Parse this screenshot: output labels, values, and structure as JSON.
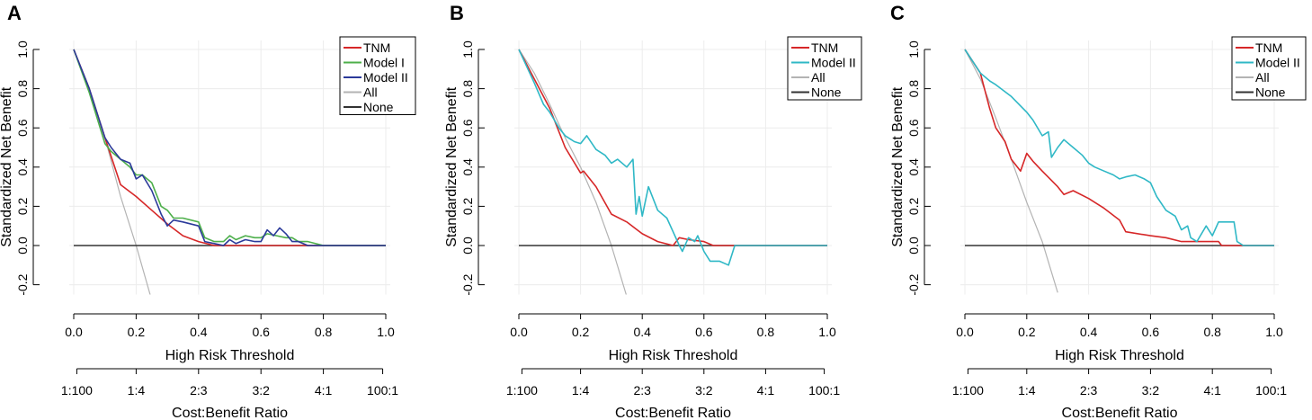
{
  "figure": {
    "width": 1459,
    "height": 467
  },
  "chart_data": [
    {
      "panel_label": "A",
      "type": "line",
      "xlabel": "High Risk Threshold",
      "ylabel": "Standardized Net Benefit",
      "secondary_xlabel": "Cost:Benefit Ratio",
      "xlim": [
        0,
        1
      ],
      "ylim": [
        -0.25,
        1.0
      ],
      "xticks": [
        "0.0",
        "0.2",
        "0.4",
        "0.6",
        "0.8",
        "1.0"
      ],
      "yticks": [
        "-0.2",
        "0.0",
        "0.2",
        "0.4",
        "0.6",
        "0.8",
        "1.0"
      ],
      "secondary_ticks": [
        "1:100",
        "1:4",
        "2:3",
        "3:2",
        "4:1",
        "100:1"
      ],
      "secondary_tick_x": [
        0.0099,
        0.2,
        0.4,
        0.6,
        0.8,
        0.9901
      ],
      "legend_position": "top-right",
      "series": [
        {
          "name": "TNM",
          "color": "#d62728",
          "x": [
            0,
            0.05,
            0.1,
            0.15,
            0.2,
            0.25,
            0.3,
            0.35,
            0.4,
            0.45,
            1.0
          ],
          "y": [
            1.0,
            0.8,
            0.55,
            0.31,
            0.25,
            0.18,
            0.11,
            0.05,
            0.02,
            0.0,
            0.0
          ]
        },
        {
          "name": "Model I",
          "color": "#4daf4a",
          "x": [
            0,
            0.05,
            0.1,
            0.12,
            0.15,
            0.18,
            0.2,
            0.22,
            0.25,
            0.28,
            0.3,
            0.32,
            0.35,
            0.4,
            0.42,
            0.45,
            0.48,
            0.5,
            0.52,
            0.55,
            0.58,
            0.6,
            0.62,
            0.65,
            0.68,
            0.7,
            0.72,
            0.75,
            0.8,
            1.0
          ],
          "y": [
            1.0,
            0.78,
            0.52,
            0.48,
            0.44,
            0.4,
            0.36,
            0.36,
            0.32,
            0.2,
            0.18,
            0.14,
            0.14,
            0.12,
            0.04,
            0.02,
            0.02,
            0.05,
            0.03,
            0.05,
            0.04,
            0.04,
            0.06,
            0.05,
            0.04,
            0.04,
            0.02,
            0.02,
            0.0,
            0.0
          ]
        },
        {
          "name": "Model II",
          "color": "#2b3a9a",
          "x": [
            0,
            0.05,
            0.1,
            0.12,
            0.15,
            0.18,
            0.2,
            0.22,
            0.25,
            0.28,
            0.3,
            0.32,
            0.35,
            0.4,
            0.42,
            0.45,
            0.48,
            0.5,
            0.52,
            0.55,
            0.58,
            0.6,
            0.62,
            0.64,
            0.66,
            0.68,
            0.7,
            0.72,
            0.75,
            0.8,
            1.0
          ],
          "y": [
            1.0,
            0.8,
            0.55,
            0.5,
            0.44,
            0.42,
            0.34,
            0.36,
            0.28,
            0.16,
            0.1,
            0.13,
            0.12,
            0.1,
            0.02,
            0.01,
            0.0,
            0.03,
            0.01,
            0.03,
            0.02,
            0.02,
            0.08,
            0.05,
            0.09,
            0.06,
            0.02,
            0.02,
            0.0,
            0.0,
            0.0
          ]
        },
        {
          "name": "All",
          "color": "#b3b3b3",
          "x": [
            0,
            0.05,
            0.1,
            0.15,
            0.2,
            0.25
          ],
          "y": [
            1.0,
            0.8,
            0.55,
            0.25,
            0.0,
            -0.28
          ]
        },
        {
          "name": "None",
          "color": "#333333",
          "x": [
            0,
            1.0
          ],
          "y": [
            0.0,
            0.0
          ]
        }
      ]
    },
    {
      "panel_label": "B",
      "type": "line",
      "xlabel": "High Risk Threshold",
      "ylabel": "Standardized Net Benefit",
      "secondary_xlabel": "Cost:Benefit Ratio",
      "xlim": [
        0,
        1
      ],
      "ylim": [
        -0.25,
        1.0
      ],
      "xticks": [
        "0.0",
        "0.2",
        "0.4",
        "0.6",
        "0.8",
        "1.0"
      ],
      "yticks": [
        "-0.2",
        "0.0",
        "0.2",
        "0.4",
        "0.6",
        "0.8",
        "1.0"
      ],
      "secondary_ticks": [
        "1:100",
        "1:4",
        "2:3",
        "3:2",
        "4:1",
        "100:1"
      ],
      "secondary_tick_x": [
        0.0099,
        0.2,
        0.4,
        0.6,
        0.8,
        0.9901
      ],
      "legend_position": "top-right",
      "series": [
        {
          "name": "TNM",
          "color": "#d62728",
          "x": [
            0,
            0.05,
            0.1,
            0.15,
            0.2,
            0.21,
            0.25,
            0.3,
            0.35,
            0.4,
            0.45,
            0.5,
            0.52,
            0.55,
            0.6,
            0.63,
            0.7,
            1.0
          ],
          "y": [
            1.0,
            0.85,
            0.7,
            0.5,
            0.37,
            0.38,
            0.3,
            0.16,
            0.12,
            0.06,
            0.02,
            0.0,
            0.04,
            0.03,
            0.02,
            0.0,
            0.0,
            0.0
          ]
        },
        {
          "name": "Model II",
          "color": "#2fb8c6",
          "x": [
            0,
            0.05,
            0.08,
            0.1,
            0.13,
            0.15,
            0.18,
            0.2,
            0.22,
            0.25,
            0.28,
            0.3,
            0.32,
            0.35,
            0.37,
            0.38,
            0.39,
            0.4,
            0.42,
            0.45,
            0.48,
            0.5,
            0.52,
            0.53,
            0.55,
            0.57,
            0.58,
            0.6,
            0.62,
            0.65,
            0.68,
            0.7,
            1.0
          ],
          "y": [
            1.0,
            0.83,
            0.72,
            0.68,
            0.6,
            0.56,
            0.53,
            0.52,
            0.56,
            0.49,
            0.46,
            0.42,
            0.44,
            0.4,
            0.44,
            0.16,
            0.25,
            0.15,
            0.3,
            0.18,
            0.14,
            0.07,
            0.0,
            -0.03,
            0.04,
            0.02,
            0.05,
            -0.03,
            -0.08,
            -0.08,
            -0.1,
            0.0,
            0.0
          ]
        },
        {
          "name": "All",
          "color": "#b3b3b3",
          "x": [
            0,
            0.05,
            0.1,
            0.15,
            0.2,
            0.25,
            0.3,
            0.35
          ],
          "y": [
            1.0,
            0.88,
            0.72,
            0.55,
            0.4,
            0.22,
            0.0,
            -0.26
          ]
        },
        {
          "name": "None",
          "color": "#333333",
          "x": [
            0,
            1.0
          ],
          "y": [
            0.0,
            0.0
          ]
        }
      ]
    },
    {
      "panel_label": "C",
      "type": "line",
      "xlabel": "High Risk Threshold",
      "ylabel": "Standardized Net Benefit",
      "secondary_xlabel": "Cost:Benefit Ratio",
      "xlim": [
        0,
        1
      ],
      "ylim": [
        -0.25,
        1.0
      ],
      "xticks": [
        "0.0",
        "0.2",
        "0.4",
        "0.6",
        "0.8",
        "1.0"
      ],
      "yticks": [
        "-0.2",
        "0.0",
        "0.2",
        "0.4",
        "0.6",
        "0.8",
        "1.0"
      ],
      "secondary_ticks": [
        "1:100",
        "1:4",
        "2:3",
        "3:2",
        "4:1",
        "100:1"
      ],
      "secondary_tick_x": [
        0.0099,
        0.2,
        0.4,
        0.6,
        0.8,
        0.9901
      ],
      "legend_position": "top-right",
      "series": [
        {
          "name": "TNM",
          "color": "#d62728",
          "x": [
            0,
            0.05,
            0.08,
            0.1,
            0.13,
            0.15,
            0.18,
            0.2,
            0.22,
            0.25,
            0.3,
            0.32,
            0.35,
            0.4,
            0.45,
            0.5,
            0.52,
            0.6,
            0.65,
            0.7,
            0.75,
            0.82,
            0.83,
            1.0
          ],
          "y": [
            1.0,
            0.88,
            0.7,
            0.6,
            0.53,
            0.44,
            0.38,
            0.47,
            0.43,
            0.38,
            0.3,
            0.26,
            0.28,
            0.24,
            0.19,
            0.13,
            0.07,
            0.05,
            0.04,
            0.02,
            0.02,
            0.02,
            0.0,
            0.0
          ]
        },
        {
          "name": "Model II",
          "color": "#2fb8c6",
          "x": [
            0,
            0.05,
            0.08,
            0.1,
            0.15,
            0.2,
            0.22,
            0.25,
            0.27,
            0.28,
            0.3,
            0.32,
            0.35,
            0.38,
            0.4,
            0.42,
            0.45,
            0.48,
            0.5,
            0.52,
            0.55,
            0.58,
            0.6,
            0.62,
            0.65,
            0.68,
            0.7,
            0.72,
            0.73,
            0.75,
            0.78,
            0.8,
            0.82,
            0.85,
            0.87,
            0.88,
            0.9,
            1.0
          ],
          "y": [
            1.0,
            0.88,
            0.84,
            0.82,
            0.76,
            0.68,
            0.64,
            0.56,
            0.58,
            0.45,
            0.5,
            0.54,
            0.5,
            0.46,
            0.42,
            0.4,
            0.38,
            0.36,
            0.34,
            0.35,
            0.36,
            0.34,
            0.32,
            0.25,
            0.18,
            0.15,
            0.08,
            0.1,
            0.04,
            0.02,
            0.1,
            0.05,
            0.12,
            0.12,
            0.12,
            0.02,
            0.0,
            0.0
          ]
        },
        {
          "name": "All",
          "color": "#b3b3b3",
          "x": [
            0,
            0.05,
            0.1,
            0.15,
            0.2,
            0.25,
            0.3
          ],
          "y": [
            1.0,
            0.85,
            0.65,
            0.44,
            0.22,
            0.02,
            -0.24
          ]
        },
        {
          "name": "None",
          "color": "#333333",
          "x": [
            0,
            1.0
          ],
          "y": [
            0.0,
            0.0
          ]
        }
      ]
    }
  ]
}
